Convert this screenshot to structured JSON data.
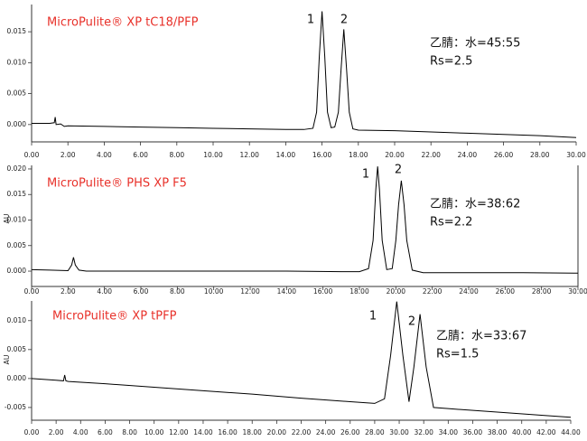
{
  "chart_data": [
    {
      "type": "line",
      "title": "MicroPulite® XP tC18/PFP",
      "annotations": [
        "乙腈：水=45:55",
        "Rs=2.5"
      ],
      "peak_labels": [
        "1",
        "2"
      ],
      "color": "#000000",
      "x": [
        0,
        1,
        1.25,
        1.3,
        1.35,
        1.6,
        1.8,
        2,
        4,
        6,
        8,
        10,
        12,
        14,
        15,
        15.5,
        15.7,
        15.85,
        16.0,
        16.15,
        16.3,
        16.5,
        16.7,
        16.9,
        17.05,
        17.2,
        17.35,
        17.5,
        17.7,
        18,
        20,
        22,
        24,
        26,
        28,
        30
      ],
      "values": [
        0.0002,
        0.0002,
        0.0003,
        0.0012,
        0.0,
        0.0001,
        -0.0003,
        -0.0002,
        -0.0003,
        -0.0004,
        -0.0005,
        -0.0006,
        -0.0007,
        -0.0008,
        -0.0008,
        -0.0006,
        0.002,
        0.011,
        0.0183,
        0.011,
        0.002,
        -0.0005,
        -0.0004,
        0.002,
        0.009,
        0.0154,
        0.009,
        0.002,
        -0.0007,
        -0.0009,
        -0.001,
        -0.0012,
        -0.0014,
        -0.0016,
        -0.0018,
        -0.0021
      ],
      "xlim": [
        0,
        30
      ],
      "ylim": [
        -0.0028,
        0.0194
      ],
      "xticks": [
        {
          "value": 0,
          "label": "0.00"
        },
        {
          "value": 2,
          "label": "2.00"
        },
        {
          "value": 4,
          "label": "4.00"
        },
        {
          "value": 6,
          "label": "6.00"
        },
        {
          "value": 8,
          "label": "8.00"
        },
        {
          "value": 10,
          "label": "10.00"
        },
        {
          "value": 12,
          "label": "12.00"
        },
        {
          "value": 14,
          "label": "14.00"
        },
        {
          "value": 16,
          "label": "16.00"
        },
        {
          "value": 18,
          "label": "18.00"
        },
        {
          "value": 20,
          "label": "20.00"
        },
        {
          "value": 22,
          "label": "22.00"
        },
        {
          "value": 24,
          "label": "24.00"
        },
        {
          "value": 26,
          "label": "26.00"
        },
        {
          "value": 28,
          "label": "28.00"
        },
        {
          "value": 30,
          "label": "30.00"
        }
      ],
      "yticks": [
        {
          "value": 0,
          "label": "0.000"
        },
        {
          "value": 0.005,
          "label": "0.005"
        },
        {
          "value": 0.01,
          "label": "0.010"
        },
        {
          "value": 0.015,
          "label": "0.015"
        }
      ]
    },
    {
      "type": "line",
      "title": "MicroPulite® PHS XP F5",
      "y_label": "AU",
      "annotations": [
        "乙腈：水=38:62",
        "Rs=2.2"
      ],
      "peak_labels": [
        "1",
        "2"
      ],
      "color": "#000000",
      "x": [
        0,
        1,
        2,
        2.2,
        2.3,
        2.4,
        2.6,
        3,
        6,
        10,
        14,
        17,
        18,
        18.5,
        18.75,
        18.9,
        19.0,
        19.1,
        19.25,
        19.5,
        19.8,
        20.0,
        20.15,
        20.3,
        20.45,
        20.6,
        20.9,
        21.5,
        24,
        27,
        30
      ],
      "values": [
        0.0003,
        0.0002,
        0.0001,
        0.0012,
        0.0027,
        0.0012,
        0.0002,
        0.0,
        0.0,
        0.0,
        0.0,
        -0.0001,
        -0.0001,
        0.0005,
        0.006,
        0.016,
        0.0205,
        0.016,
        0.006,
        0.0003,
        0.0005,
        0.006,
        0.013,
        0.0177,
        0.013,
        0.006,
        0.0002,
        -0.0003,
        -0.0003,
        -0.0003,
        -0.0004
      ],
      "xlim": [
        0,
        30
      ],
      "ylim": [
        -0.003,
        0.0207
      ],
      "xticks": [
        {
          "value": 0,
          "label": "0.00"
        },
        {
          "value": 2,
          "label": "2.00"
        },
        {
          "value": 4,
          "label": "4.00"
        },
        {
          "value": 6,
          "label": "6.00"
        },
        {
          "value": 8,
          "label": "8.00"
        },
        {
          "value": 10,
          "label": "10.00"
        },
        {
          "value": 12,
          "label": "12.00"
        },
        {
          "value": 14,
          "label": "14.00"
        },
        {
          "value": 16,
          "label": "16.00"
        },
        {
          "value": 18,
          "label": "18.00"
        },
        {
          "value": 20,
          "label": "20.00"
        },
        {
          "value": 22,
          "label": "22.00"
        },
        {
          "value": 24,
          "label": "24.00"
        },
        {
          "value": 26,
          "label": "26.00"
        },
        {
          "value": 28,
          "label": "28.00"
        },
        {
          "value": 30,
          "label": "30.00"
        }
      ],
      "yticks": [
        {
          "value": 0,
          "label": "0.000"
        },
        {
          "value": 0.005,
          "label": "0.005"
        },
        {
          "value": 0.01,
          "label": "0.010"
        },
        {
          "value": 0.015,
          "label": "0.015"
        },
        {
          "value": 0.02,
          "label": "0.020"
        }
      ]
    },
    {
      "type": "line",
      "title": "MicroPulite® XP tPFP",
      "y_label": "AU",
      "annotations": [
        "乙腈：水=33:67",
        "Rs=1.5"
      ],
      "peak_labels": [
        "1",
        "2"
      ],
      "color": "#000000",
      "x": [
        0,
        2,
        2.6,
        2.7,
        2.8,
        3,
        6,
        10,
        14,
        18,
        22,
        26,
        28,
        28.8,
        29.3,
        29.8,
        30.3,
        30.8,
        31.2,
        31.7,
        32.2,
        32.8,
        34,
        38,
        42,
        44
      ],
      "values": [
        0,
        -0.0003,
        -0.0004,
        0.0006,
        -0.0004,
        -0.0005,
        -0.0009,
        -0.0015,
        -0.0021,
        -0.0027,
        -0.0034,
        -0.004,
        -0.0043,
        -0.0035,
        0.004,
        0.0133,
        0.004,
        -0.004,
        0.002,
        0.0111,
        0.002,
        -0.005,
        -0.0052,
        -0.0058,
        -0.0064,
        -0.0067
      ],
      "xlim": [
        0,
        44
      ],
      "ylim": [
        -0.0072,
        0.0134
      ],
      "xticks": [
        {
          "value": 0,
          "label": "0.00"
        },
        {
          "value": 2,
          "label": "2.00"
        },
        {
          "value": 4,
          "label": "4.00"
        },
        {
          "value": 6,
          "label": "6.00"
        },
        {
          "value": 8,
          "label": "8.00"
        },
        {
          "value": 10,
          "label": "10.00"
        },
        {
          "value": 12,
          "label": "12.00"
        },
        {
          "value": 14,
          "label": "14.00"
        },
        {
          "value": 16,
          "label": "16.00"
        },
        {
          "value": 18,
          "label": "18.00"
        },
        {
          "value": 20,
          "label": "20.00"
        },
        {
          "value": 22,
          "label": "22.00"
        },
        {
          "value": 24,
          "label": "24.00"
        },
        {
          "value": 26,
          "label": "26.00"
        },
        {
          "value": 28,
          "label": "28.00"
        },
        {
          "value": 30,
          "label": "30.00"
        },
        {
          "value": 32,
          "label": "32.00"
        },
        {
          "value": 34,
          "label": "34.00"
        },
        {
          "value": 36,
          "label": "36.00"
        },
        {
          "value": 38,
          "label": "38.00"
        },
        {
          "value": 40,
          "label": "40.00"
        },
        {
          "value": 42,
          "label": "42.00"
        },
        {
          "value": 44,
          "label": "44.00"
        }
      ],
      "yticks": [
        {
          "value": -0.005,
          "label": "-0.005"
        },
        {
          "value": 0,
          "label": "0.000"
        },
        {
          "value": 0.005,
          "label": "0.005"
        },
        {
          "value": 0.01,
          "label": "0.010"
        }
      ]
    }
  ]
}
